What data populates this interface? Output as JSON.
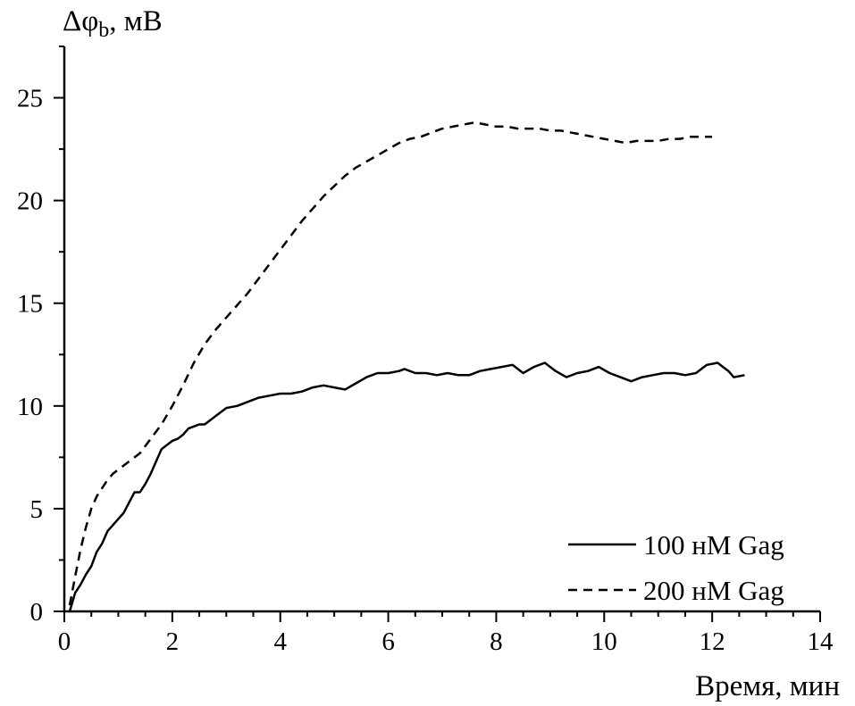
{
  "chart_data": {
    "type": "line",
    "title": "",
    "ylabel_symbol": "Δφ",
    "ylabel_subscript": "b",
    "ylabel_unit": ", мВ",
    "xlabel": "Время, мин",
    "xlim": [
      0,
      14
    ],
    "ylim": [
      0,
      27.5
    ],
    "xticks": [
      0,
      2,
      4,
      6,
      8,
      10,
      12,
      14
    ],
    "xtick_labels": [
      "0",
      "2",
      "4",
      "6",
      "8",
      "10",
      "12",
      "14"
    ],
    "yticks": [
      0,
      5,
      10,
      15,
      20,
      25
    ],
    "ytick_labels": [
      "0",
      "5",
      "10",
      "15",
      "20",
      "25"
    ],
    "grid": false,
    "legend_position": "bottom-right",
    "series": [
      {
        "name": "100 нМ Gag",
        "style": "solid",
        "x": [
          0.1,
          0.2,
          0.3,
          0.4,
          0.5,
          0.6,
          0.7,
          0.8,
          0.9,
          1.0,
          1.1,
          1.2,
          1.3,
          1.4,
          1.5,
          1.6,
          1.7,
          1.8,
          1.9,
          2.0,
          2.1,
          2.2,
          2.3,
          2.4,
          2.5,
          2.6,
          2.7,
          2.8,
          2.9,
          3.0,
          3.2,
          3.4,
          3.6,
          3.8,
          4.0,
          4.2,
          4.4,
          4.6,
          4.8,
          5.0,
          5.2,
          5.4,
          5.6,
          5.8,
          6.0,
          6.2,
          6.3,
          6.5,
          6.7,
          6.9,
          7.1,
          7.3,
          7.5,
          7.7,
          7.9,
          8.1,
          8.3,
          8.5,
          8.7,
          8.9,
          9.1,
          9.3,
          9.5,
          9.7,
          9.9,
          10.1,
          10.3,
          10.5,
          10.7,
          10.9,
          11.1,
          11.3,
          11.5,
          11.7,
          11.9,
          12.1,
          12.3,
          12.4,
          12.6
        ],
        "values": [
          0.0,
          0.9,
          1.3,
          1.8,
          2.2,
          2.9,
          3.3,
          3.9,
          4.2,
          4.5,
          4.8,
          5.3,
          5.8,
          5.8,
          6.2,
          6.7,
          7.3,
          7.9,
          8.1,
          8.3,
          8.4,
          8.6,
          8.9,
          9.0,
          9.1,
          9.1,
          9.3,
          9.5,
          9.7,
          9.9,
          10.0,
          10.2,
          10.4,
          10.5,
          10.6,
          10.6,
          10.7,
          10.9,
          11.0,
          10.9,
          10.8,
          11.1,
          11.4,
          11.6,
          11.6,
          11.7,
          11.8,
          11.6,
          11.6,
          11.5,
          11.6,
          11.5,
          11.5,
          11.7,
          11.8,
          11.9,
          12.0,
          11.6,
          11.9,
          12.1,
          11.7,
          11.4,
          11.6,
          11.7,
          11.9,
          11.6,
          11.4,
          11.2,
          11.4,
          11.5,
          11.6,
          11.6,
          11.5,
          11.6,
          12.0,
          12.1,
          11.7,
          11.4,
          11.5
        ]
      },
      {
        "name": "200 нМ Gag",
        "style": "dashed",
        "x": [
          0.1,
          0.2,
          0.3,
          0.4,
          0.5,
          0.6,
          0.7,
          0.8,
          0.9,
          1.0,
          1.2,
          1.4,
          1.6,
          1.8,
          2.0,
          2.2,
          2.4,
          2.6,
          2.8,
          3.0,
          3.2,
          3.4,
          3.6,
          3.8,
          4.0,
          4.2,
          4.4,
          4.6,
          4.8,
          5.0,
          5.2,
          5.4,
          5.6,
          5.8,
          6.0,
          6.2,
          6.4,
          6.6,
          6.8,
          7.0,
          7.2,
          7.4,
          7.6,
          7.8,
          8.0,
          8.2,
          8.4,
          8.6,
          8.8,
          9.0,
          9.2,
          9.4,
          9.6,
          9.8,
          10.0,
          10.2,
          10.4,
          10.6,
          10.8,
          11.0,
          11.2,
          11.4,
          11.6,
          11.8,
          12.0
        ],
        "values": [
          0.3,
          1.7,
          3.0,
          4.1,
          5.0,
          5.6,
          6.0,
          6.4,
          6.7,
          6.9,
          7.3,
          7.7,
          8.4,
          9.1,
          10.0,
          11.0,
          12.1,
          13.0,
          13.7,
          14.3,
          14.9,
          15.5,
          16.2,
          16.9,
          17.6,
          18.3,
          19.0,
          19.6,
          20.2,
          20.7,
          21.2,
          21.6,
          21.9,
          22.2,
          22.5,
          22.8,
          23.0,
          23.1,
          23.3,
          23.5,
          23.6,
          23.7,
          23.8,
          23.7,
          23.6,
          23.6,
          23.5,
          23.5,
          23.5,
          23.4,
          23.4,
          23.3,
          23.2,
          23.1,
          23.0,
          22.9,
          22.8,
          22.9,
          22.9,
          22.9,
          23.0,
          23.0,
          23.1,
          23.1,
          23.1
        ]
      }
    ]
  },
  "colors": {
    "background": "#ffffff",
    "ink": "#000000"
  }
}
